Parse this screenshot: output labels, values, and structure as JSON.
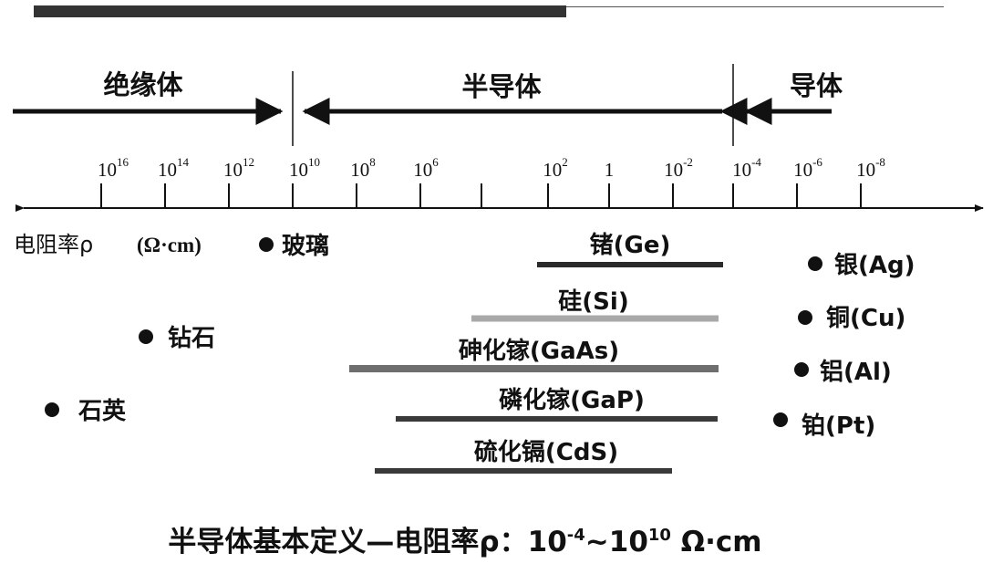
{
  "regions": {
    "insulator": "绝缘体",
    "semiconductor": "半导体",
    "conductor": "导体"
  },
  "axis": {
    "label": "电阻率ρ",
    "unit": "(Ω·cm)",
    "ticks": [
      {
        "base": "10",
        "exp": "16"
      },
      {
        "base": "10",
        "exp": "14"
      },
      {
        "base": "10",
        "exp": "12"
      },
      {
        "base": "10",
        "exp": "10"
      },
      {
        "base": "10",
        "exp": "8"
      },
      {
        "base": "10",
        "exp": "6"
      },
      {
        "base": "10",
        "exp": "2"
      },
      {
        "base": "1",
        "exp": ""
      },
      {
        "base": "10",
        "exp": "-2"
      },
      {
        "base": "10",
        "exp": "-4"
      },
      {
        "base": "10",
        "exp": "-6"
      },
      {
        "base": "10",
        "exp": "-8"
      }
    ]
  },
  "points": [
    {
      "label": "玻璃"
    },
    {
      "label": "钻石"
    },
    {
      "label": "石英"
    },
    {
      "label": "银(Ag)"
    },
    {
      "label": "铜(Cu)"
    },
    {
      "label": "铝(Al)"
    },
    {
      "label": "铂(Pt)"
    }
  ],
  "ranges": [
    {
      "label": "锗(Ge)",
      "color": "#2a2a2a"
    },
    {
      "label": "硅(Si)",
      "color": "#a9a9a9"
    },
    {
      "label": "砷化镓(GaAs)",
      "color": "#6e6e6e"
    },
    {
      "label": "磷化镓(GaP)",
      "color": "#3a3a3a"
    },
    {
      "label": "硫化镉(CdS)",
      "color": "#3a3a3a"
    }
  ],
  "title": {
    "main": "半导体基本定义—电阻率ρ：",
    "lower_base": "10",
    "lower_exp": "-4",
    "sep": "~",
    "upper_base": "10",
    "upper_exp": "10",
    "unit": " Ω·cm"
  }
}
